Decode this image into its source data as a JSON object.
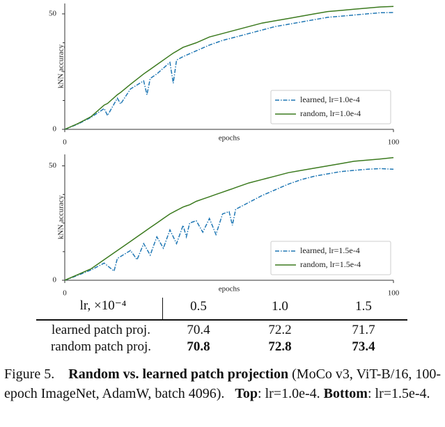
{
  "chart_data": [
    {
      "type": "line",
      "x_label": "epochs",
      "y_label": "kNN accuracy",
      "xlim": [
        0,
        100
      ],
      "xticks": [
        0,
        100
      ],
      "ylim": [
        0,
        54.5
      ],
      "yticks": [
        0,
        50
      ],
      "yminorticks": [
        12.5,
        25,
        37.5
      ],
      "legend": "lower right",
      "x": [
        0,
        4,
        8,
        12,
        13,
        16,
        17,
        20,
        24,
        25,
        26,
        28,
        32,
        33,
        34,
        36,
        40,
        44,
        48,
        52,
        56,
        60,
        64,
        68,
        72,
        76,
        80,
        84,
        88,
        92,
        96,
        100
      ],
      "series": [
        {
          "name": "learned, lr=1.0e-4",
          "color": "#1f77b4",
          "linestyle": "dashdot",
          "values": [
            0,
            2.3,
            5.2,
            9,
            6,
            13.5,
            11,
            17.5,
            21,
            15,
            22,
            24,
            29,
            20,
            30,
            31.5,
            34,
            36.5,
            38.5,
            40,
            41.5,
            43,
            44.5,
            45.5,
            46.5,
            47.5,
            48.5,
            49,
            49.5,
            50,
            50.5,
            50.6
          ]
        },
        {
          "name": "random, lr=1.0e-4",
          "color": "#3b7a1e",
          "linestyle": "solid",
          "values": [
            0,
            2.5,
            5.5,
            10.5,
            11.2,
            15,
            16,
            19.5,
            24,
            25,
            26,
            28,
            32,
            33,
            33.8,
            35.5,
            37.5,
            40,
            41.5,
            43,
            44.5,
            46,
            47,
            48,
            49,
            50,
            51,
            51.5,
            52,
            52.5,
            53,
            53.2
          ]
        }
      ]
    },
    {
      "type": "line",
      "x_label": "epochs",
      "y_label": "kNN accuracy",
      "xlim": [
        0,
        100
      ],
      "xticks": [
        0,
        100
      ],
      "ylim": [
        0,
        55
      ],
      "yticks": [
        0,
        50
      ],
      "yminorticks": [
        12.5,
        25,
        37.5
      ],
      "legend": "lower right",
      "x": [
        0,
        4,
        8,
        12,
        15,
        16,
        20,
        22,
        24,
        26,
        28,
        30,
        32,
        34,
        36,
        37,
        38,
        40,
        42,
        44,
        46,
        48,
        50,
        51,
        52,
        56,
        60,
        64,
        68,
        72,
        76,
        80,
        84,
        88,
        92,
        96,
        100
      ],
      "series": [
        {
          "name": "learned, lr=1.5e-4",
          "color": "#1f77b4",
          "linestyle": "dashdot",
          "values": [
            0,
            2.2,
            4.5,
            7.5,
            4,
            9.5,
            13,
            9,
            16,
            11,
            19,
            14,
            22,
            16,
            24,
            19,
            25,
            26,
            21,
            27,
            20,
            29,
            30,
            24,
            31,
            34,
            37,
            39.5,
            42,
            44,
            45.5,
            46.5,
            47.5,
            48,
            48.5,
            48.8,
            48.5
          ]
        },
        {
          "name": "random, lr=1.5e-4",
          "color": "#3b7a1e",
          "linestyle": "solid",
          "values": [
            0,
            2.5,
            5,
            9,
            12,
            13,
            17,
            19,
            21,
            23,
            25,
            27,
            29,
            30.5,
            32,
            32.5,
            33,
            34.5,
            35.5,
            36.5,
            37.5,
            38.5,
            39.5,
            40,
            40.5,
            42.5,
            44,
            45.5,
            47,
            48,
            49,
            50,
            51,
            52,
            52.5,
            53,
            53.6
          ]
        }
      ]
    }
  ],
  "table": {
    "header": [
      "lr, ×10⁻⁴",
      "0.5",
      "1.0",
      "1.5"
    ],
    "rows": [
      [
        "learned patch proj.",
        "70.4",
        "72.2",
        "71.7"
      ],
      [
        "random patch proj.",
        "70.8",
        "72.8",
        "73.4"
      ]
    ]
  },
  "caption": {
    "label": "Figure 5.",
    "title": "Random vs. learned patch projection",
    "text": "(MoCo v3, ViT-B/16, 100-epoch ImageNet, AdamW, batch 4096).",
    "top_label": "Top",
    "top_text": ": lr=1.0e-4.",
    "bottom_label": "Bottom",
    "bottom_text": ": lr=1.5e-4."
  }
}
